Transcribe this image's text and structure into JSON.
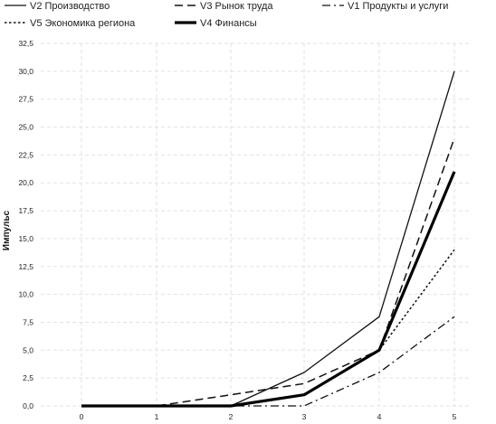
{
  "chart_data": {
    "type": "line",
    "title": "",
    "xlabel": "",
    "ylabel": "Импульс",
    "x": [
      0,
      1,
      2,
      3,
      4,
      5
    ],
    "xlim": [
      0,
      5
    ],
    "ylim": [
      0,
      32.5
    ],
    "x_ticks": [
      "0",
      "1",
      "2",
      "3",
      "4",
      "5"
    ],
    "y_ticks": [
      "0,0",
      "2,5",
      "5,0",
      "7,5",
      "10,0",
      "12,5",
      "15,0",
      "17,5",
      "20,0",
      "22,5",
      "25,0",
      "27,5",
      "30,0",
      "32,5"
    ],
    "y_tick_values": [
      0,
      2.5,
      5,
      7.5,
      10,
      12.5,
      15,
      17.5,
      20,
      22.5,
      25,
      27.5,
      30,
      32.5
    ],
    "grid": true,
    "legend_position": "top",
    "series": [
      {
        "name": "V2 Производство",
        "values": [
          0,
          0,
          0,
          3,
          8,
          30
        ],
        "dash": "solid",
        "width": 1.3,
        "color": "#111111"
      },
      {
        "name": "V3 Рынок труда",
        "values": [
          0,
          0,
          1,
          2,
          5,
          24
        ],
        "dash": "dash",
        "width": 1.5,
        "color": "#111111"
      },
      {
        "name": "V1 Продукты и услуги",
        "values": [
          0,
          0,
          0,
          0,
          3,
          8
        ],
        "dash": "dashdot",
        "width": 1.3,
        "color": "#111111"
      },
      {
        "name": "V5 Экономика региона",
        "values": [
          0,
          0,
          0,
          1,
          5,
          14
        ],
        "dash": "dot",
        "width": 1.5,
        "color": "#111111"
      },
      {
        "name": "V4 Финансы",
        "values": [
          0,
          0,
          0,
          1,
          5,
          21
        ],
        "dash": "solid",
        "width": 3.2,
        "color": "#000000"
      }
    ]
  }
}
